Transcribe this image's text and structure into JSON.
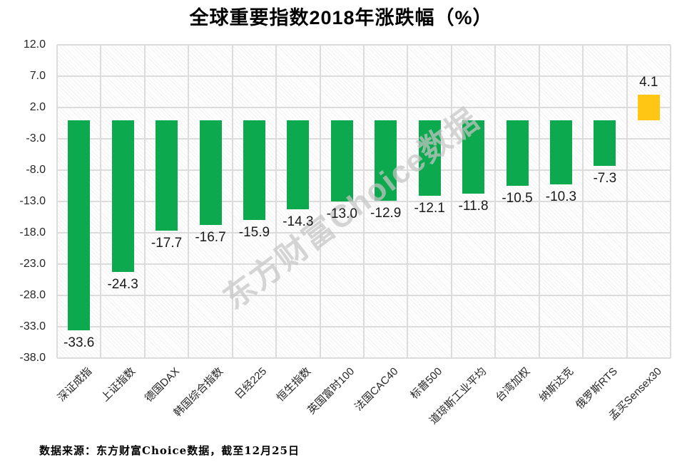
{
  "title": "全球重要指数2018年涨跌幅（%）",
  "watermark": "东方财富Choice数据",
  "footer": {
    "source_note": "数据来源：东方财富Choice数据，截至12月25日"
  },
  "colors": {
    "negative_bar": "#0ca94f",
    "positive_bar": "#ffc713",
    "gridline": "#dcdcdc",
    "title_text": "#000000",
    "label_text": "#1a1a1a"
  },
  "chart_data": {
    "type": "bar",
    "title": "全球重要指数2018年涨跌幅（%）",
    "xlabel": "",
    "ylabel": "",
    "categories": [
      "深证成指",
      "上证指数",
      "德国DAX",
      "韩国综合指数",
      "日经225",
      "恒生指数",
      "英国富时100",
      "法国CAC40",
      "标普500",
      "道琼斯工业平均",
      "台湾加权",
      "纳斯达克",
      "俄罗斯RTS",
      "孟买Sensex30"
    ],
    "values": [
      -33.6,
      -24.3,
      -17.7,
      -16.7,
      -15.9,
      -14.3,
      -13.0,
      -12.9,
      -12.1,
      -11.8,
      -10.5,
      -10.3,
      -7.3,
      4.1
    ],
    "value_labels": [
      "-33.6",
      "-24.3",
      "-17.7",
      "-16.7",
      "-15.9",
      "-14.3",
      "-13.0",
      "-12.9",
      "-12.1",
      "-11.8",
      "-10.5",
      "-10.3",
      "-7.3",
      "4.1"
    ],
    "ylim": [
      -38,
      12
    ],
    "yticks": [
      12,
      7,
      2,
      -3,
      -8,
      -13,
      -18,
      -23,
      -28,
      -33,
      -38
    ],
    "ytick_labels": [
      "12.0",
      "7.0",
      "2.0",
      "-3.0",
      "-8.0",
      "-13.0",
      "-18.0",
      "-23.0",
      "-28.0",
      "-33.0",
      "-38.0"
    ],
    "grid": true,
    "legend": false,
    "watermark": "东方财富Choice数据"
  }
}
